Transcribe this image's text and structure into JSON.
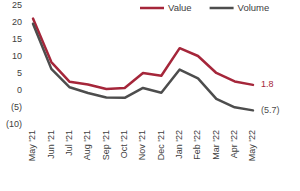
{
  "chart_data": {
    "type": "line",
    "categories": [
      "May '21",
      "Jun '21",
      "Jul '21",
      "Aug '21",
      "Sep '21",
      "Oct '21",
      "Nov '21",
      "Dec '21",
      "Jan '22",
      "Feb '22",
      "Mar '22",
      "Apr '22",
      "May '22"
    ],
    "series": [
      {
        "name": "Value",
        "color": "#a5263a",
        "values": [
          21.3,
          8.5,
          2.7,
          1.9,
          0.6,
          0.9,
          5.3,
          4.5,
          12.6,
          10.3,
          5.3,
          2.8,
          1.8
        ],
        "value_labels": [
          null,
          null,
          null,
          null,
          null,
          null,
          null,
          null,
          null,
          null,
          null,
          null,
          "1.8"
        ]
      },
      {
        "name": "Volume",
        "color": "#4d4d4d",
        "values": [
          19.8,
          6.5,
          1.1,
          -0.6,
          -1.9,
          -2.0,
          0.9,
          -0.5,
          6.3,
          3.7,
          -2.3,
          -4.8,
          -5.7
        ],
        "value_labels": [
          null,
          null,
          null,
          null,
          null,
          null,
          null,
          null,
          null,
          null,
          null,
          null,
          "(5.7)"
        ]
      }
    ],
    "ylim": [
      -10,
      25
    ],
    "yticks": [
      {
        "value": -10,
        "label": "(10)"
      },
      {
        "value": -5,
        "label": "(5)"
      },
      0,
      5,
      10,
      15,
      20,
      25
    ],
    "grid": false,
    "legend": "top"
  }
}
